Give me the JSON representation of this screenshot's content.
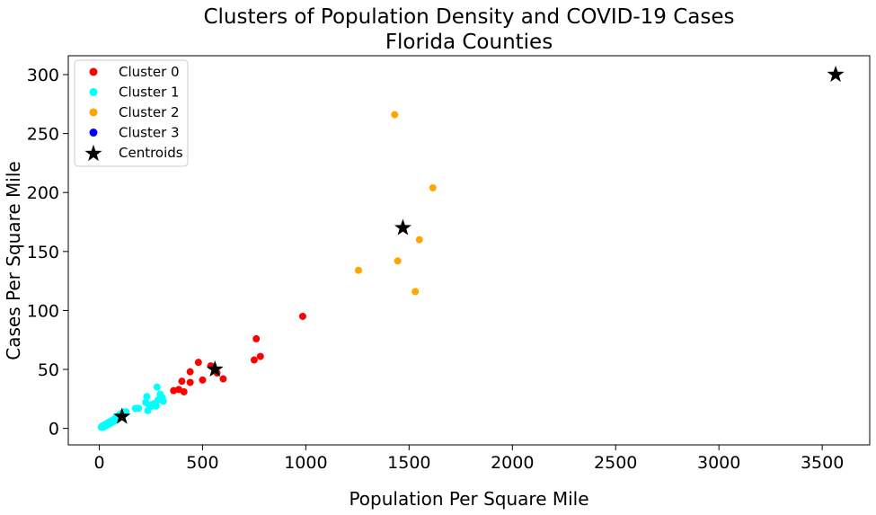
{
  "chart_data": {
    "type": "scatter",
    "title": [
      "Clusters of Population Density and COVID-19 Cases",
      "Florida Counties"
    ],
    "xlabel": "Population Per Square Mile",
    "ylabel": "Cases Per Square Mile",
    "xlim": [
      -150,
      3730
    ],
    "ylim": [
      -14,
      316
    ],
    "xticks": [
      0,
      500,
      1000,
      1500,
      2000,
      2500,
      3000,
      3500
    ],
    "yticks": [
      0,
      50,
      100,
      150,
      200,
      250,
      300
    ],
    "grid": false,
    "legend_position": "top-left",
    "series": [
      {
        "name": "Cluster 0",
        "color": "#ff0000",
        "marker": "circle",
        "points": [
          [
            360,
            32
          ],
          [
            385,
            33
          ],
          [
            400,
            40
          ],
          [
            410,
            31
          ],
          [
            440,
            48
          ],
          [
            440,
            39
          ],
          [
            480,
            56
          ],
          [
            500,
            41
          ],
          [
            540,
            53
          ],
          [
            570,
            47
          ],
          [
            600,
            42
          ],
          [
            750,
            58
          ],
          [
            760,
            76
          ],
          [
            780,
            61
          ],
          [
            985,
            95
          ]
        ]
      },
      {
        "name": "Cluster 1",
        "color": "#00ffff",
        "marker": "circle",
        "points": [
          [
            10,
            1
          ],
          [
            15,
            2
          ],
          [
            20,
            1
          ],
          [
            25,
            3
          ],
          [
            30,
            2
          ],
          [
            35,
            4
          ],
          [
            40,
            3
          ],
          [
            45,
            5
          ],
          [
            50,
            4
          ],
          [
            55,
            6
          ],
          [
            60,
            5
          ],
          [
            65,
            7
          ],
          [
            70,
            6
          ],
          [
            75,
            8
          ],
          [
            80,
            9
          ],
          [
            85,
            8
          ],
          [
            90,
            10
          ],
          [
            95,
            11
          ],
          [
            100,
            12
          ],
          [
            105,
            10
          ],
          [
            110,
            13
          ],
          [
            115,
            12
          ],
          [
            120,
            14
          ],
          [
            125,
            13
          ],
          [
            130,
            14
          ],
          [
            175,
            17
          ],
          [
            190,
            17
          ],
          [
            225,
            22
          ],
          [
            230,
            27
          ],
          [
            235,
            15
          ],
          [
            240,
            20
          ],
          [
            245,
            18
          ],
          [
            255,
            19
          ],
          [
            265,
            21
          ],
          [
            275,
            19
          ],
          [
            280,
            35
          ],
          [
            285,
            24
          ],
          [
            295,
            29
          ],
          [
            305,
            26
          ],
          [
            310,
            23
          ]
        ]
      },
      {
        "name": "Cluster 2",
        "color": "#ffa500",
        "marker": "circle",
        "points": [
          [
            1255,
            134
          ],
          [
            1430,
            266
          ],
          [
            1445,
            142
          ],
          [
            1530,
            116
          ],
          [
            1550,
            160
          ],
          [
            1615,
            204
          ]
        ]
      },
      {
        "name": "Cluster 3",
        "color": "#0000ff",
        "marker": "circle",
        "points": []
      },
      {
        "name": "Centroids",
        "color": "#000000",
        "marker": "star",
        "points": [
          [
            110,
            10
          ],
          [
            560,
            50
          ],
          [
            1470,
            170
          ],
          [
            3565,
            300
          ]
        ]
      }
    ]
  }
}
